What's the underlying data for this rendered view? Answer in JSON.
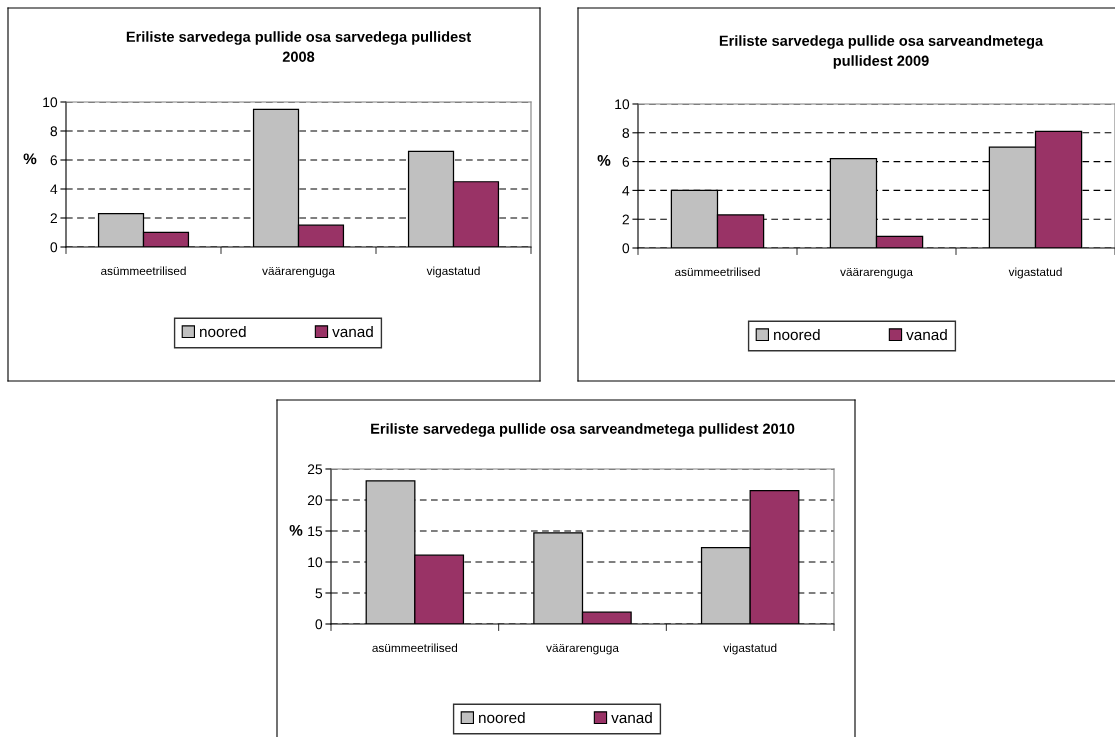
{
  "chart_data": [
    {
      "type": "bar",
      "title": "Eriliste sarvedega pullide osa sarvedega pullidest\n2008",
      "ylabel": "%",
      "categories": [
        "asümmeetrilised",
        "väärarenguga",
        "vigastatud"
      ],
      "series": [
        {
          "name": "noored",
          "color": "#c0c0c0",
          "values": [
            2.3,
            9.5,
            6.6
          ]
        },
        {
          "name": "vanad",
          "color": "#993366",
          "values": [
            1.0,
            1.5,
            4.5
          ]
        }
      ],
      "ylim": [
        0,
        10
      ],
      "yticks": [
        0,
        2,
        4,
        6,
        8,
        10
      ],
      "grid": "y",
      "legend": "bottom"
    },
    {
      "type": "bar",
      "title": "Eriliste sarvedega pullide osa sarveandmetega\npullidest 2009",
      "ylabel": "%",
      "categories": [
        "asümmeetrilised",
        "väärarenguga",
        "vigastatud"
      ],
      "series": [
        {
          "name": "noored",
          "color": "#c0c0c0",
          "values": [
            4.0,
            6.2,
            7.0
          ]
        },
        {
          "name": "vanad",
          "color": "#993366",
          "values": [
            2.3,
            0.8,
            8.1
          ]
        }
      ],
      "ylim": [
        0,
        10
      ],
      "yticks": [
        0,
        2,
        4,
        6,
        8,
        10
      ],
      "grid": "y",
      "legend": "bottom"
    },
    {
      "type": "bar",
      "title": "Eriliste sarvedega pullide osa sarveandmetega pullidest 2010",
      "ylabel": "%",
      "categories": [
        "asümmeetrilised",
        "väärarenguga",
        "vigastatud"
      ],
      "series": [
        {
          "name": "noored",
          "color": "#c0c0c0",
          "values": [
            23.1,
            14.7,
            12.3
          ]
        },
        {
          "name": "vanad",
          "color": "#993366",
          "values": [
            11.1,
            1.9,
            21.5
          ]
        }
      ],
      "ylim": [
        0,
        25
      ],
      "yticks": [
        0,
        5,
        10,
        15,
        20,
        25
      ],
      "grid": "y",
      "legend": "bottom"
    }
  ]
}
